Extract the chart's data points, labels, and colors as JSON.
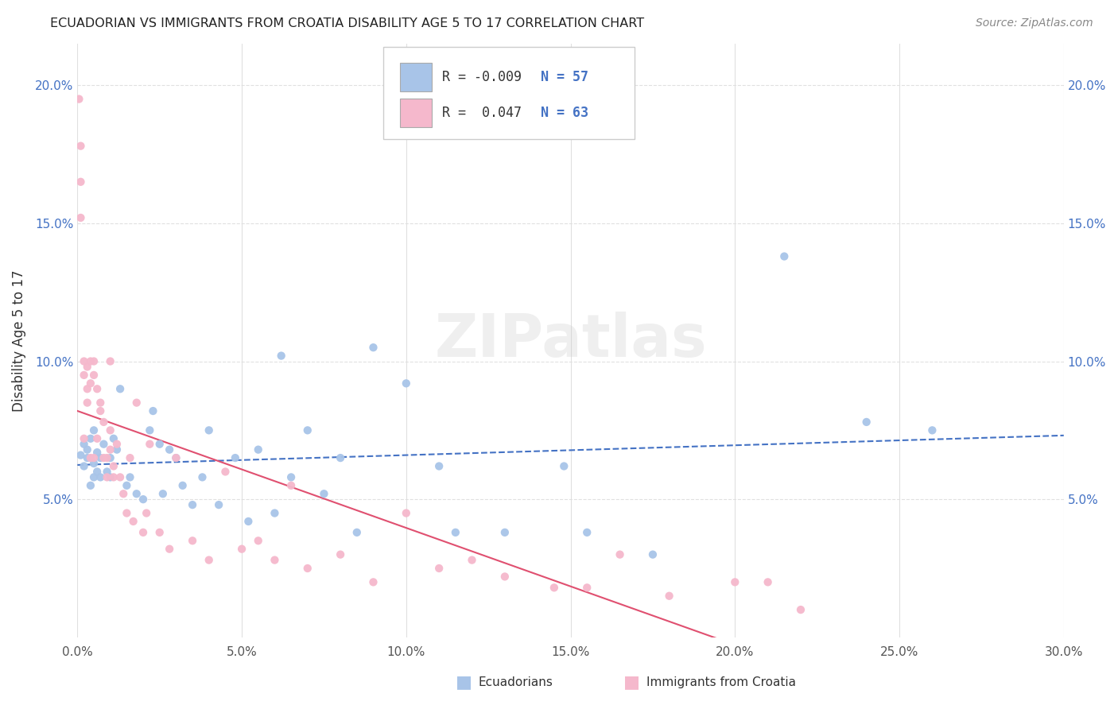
{
  "title": "ECUADORIAN VS IMMIGRANTS FROM CROATIA DISABILITY AGE 5 TO 17 CORRELATION CHART",
  "source": "Source: ZipAtlas.com",
  "ylabel_label": "Disability Age 5 to 17",
  "xmin": 0.0,
  "xmax": 0.3,
  "ymin": 0.0,
  "ymax": 0.215,
  "yticks": [
    0.05,
    0.1,
    0.15,
    0.2
  ],
  "ytick_labels": [
    "5.0%",
    "10.0%",
    "15.0%",
    "20.0%"
  ],
  "xticks": [
    0.0,
    0.05,
    0.1,
    0.15,
    0.2,
    0.25,
    0.3
  ],
  "xlabel_ticks": [
    "0.0%",
    "5.0%",
    "10.0%",
    "15.0%",
    "20.0%",
    "25.0%",
    "30.0%"
  ],
  "blue_color": "#a8c4e8",
  "pink_color": "#f5b8cc",
  "blue_line_color": "#4472c4",
  "pink_line_color": "#e05070",
  "legend_blue_R": "-0.009",
  "legend_blue_N": "57",
  "legend_pink_R": "0.047",
  "legend_pink_N": "63",
  "blue_scatter_x": [
    0.001,
    0.002,
    0.002,
    0.003,
    0.003,
    0.004,
    0.004,
    0.005,
    0.005,
    0.005,
    0.006,
    0.006,
    0.007,
    0.007,
    0.008,
    0.009,
    0.01,
    0.01,
    0.011,
    0.012,
    0.013,
    0.015,
    0.016,
    0.018,
    0.02,
    0.022,
    0.023,
    0.025,
    0.026,
    0.028,
    0.03,
    0.032,
    0.035,
    0.038,
    0.04,
    0.043,
    0.048,
    0.052,
    0.055,
    0.06,
    0.062,
    0.065,
    0.07,
    0.075,
    0.08,
    0.085,
    0.09,
    0.1,
    0.11,
    0.115,
    0.13,
    0.148,
    0.155,
    0.175,
    0.215,
    0.24,
    0.26
  ],
  "blue_scatter_y": [
    0.066,
    0.07,
    0.062,
    0.065,
    0.068,
    0.055,
    0.072,
    0.058,
    0.063,
    0.075,
    0.06,
    0.067,
    0.058,
    0.065,
    0.07,
    0.06,
    0.065,
    0.058,
    0.072,
    0.068,
    0.09,
    0.055,
    0.058,
    0.052,
    0.05,
    0.075,
    0.082,
    0.07,
    0.052,
    0.068,
    0.065,
    0.055,
    0.048,
    0.058,
    0.075,
    0.048,
    0.065,
    0.042,
    0.068,
    0.045,
    0.102,
    0.058,
    0.075,
    0.052,
    0.065,
    0.038,
    0.105,
    0.092,
    0.062,
    0.038,
    0.038,
    0.062,
    0.038,
    0.03,
    0.138,
    0.078,
    0.075
  ],
  "pink_scatter_x": [
    0.0005,
    0.001,
    0.001,
    0.001,
    0.002,
    0.002,
    0.002,
    0.003,
    0.003,
    0.003,
    0.004,
    0.004,
    0.004,
    0.005,
    0.005,
    0.005,
    0.006,
    0.006,
    0.007,
    0.007,
    0.008,
    0.008,
    0.009,
    0.009,
    0.01,
    0.01,
    0.011,
    0.011,
    0.012,
    0.013,
    0.014,
    0.015,
    0.016,
    0.017,
    0.018,
    0.02,
    0.021,
    0.022,
    0.025,
    0.028,
    0.03,
    0.035,
    0.04,
    0.045,
    0.05,
    0.055,
    0.06,
    0.065,
    0.07,
    0.08,
    0.09,
    0.1,
    0.11,
    0.12,
    0.13,
    0.145,
    0.155,
    0.165,
    0.18,
    0.2,
    0.21,
    0.22,
    0.01
  ],
  "pink_scatter_y": [
    0.195,
    0.178,
    0.165,
    0.152,
    0.1,
    0.095,
    0.072,
    0.098,
    0.09,
    0.085,
    0.1,
    0.092,
    0.065,
    0.1,
    0.095,
    0.065,
    0.09,
    0.072,
    0.085,
    0.082,
    0.078,
    0.065,
    0.065,
    0.058,
    0.075,
    0.068,
    0.062,
    0.058,
    0.07,
    0.058,
    0.052,
    0.045,
    0.065,
    0.042,
    0.085,
    0.038,
    0.045,
    0.07,
    0.038,
    0.032,
    0.065,
    0.035,
    0.028,
    0.06,
    0.032,
    0.035,
    0.028,
    0.055,
    0.025,
    0.03,
    0.02,
    0.045,
    0.025,
    0.028,
    0.022,
    0.018,
    0.018,
    0.03,
    0.015,
    0.02,
    0.02,
    0.01,
    0.1
  ],
  "watermark": "ZIPatlas",
  "background_color": "#ffffff",
  "grid_color": "#e0e0e0"
}
